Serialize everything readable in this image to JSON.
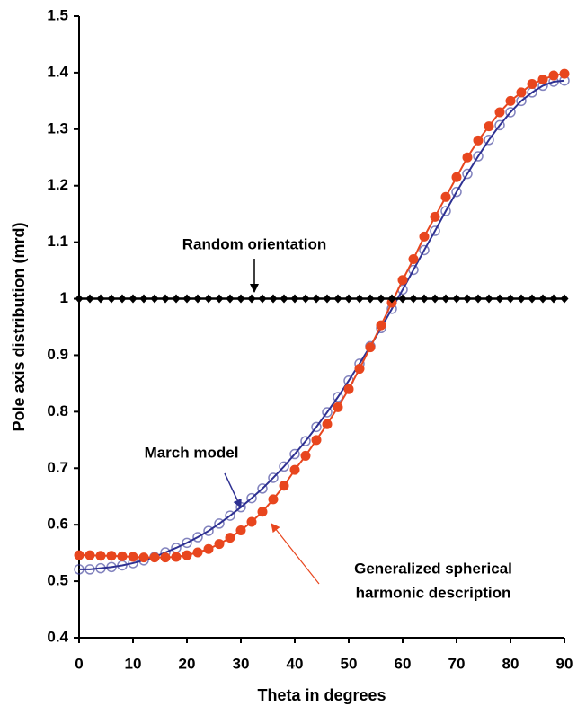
{
  "chart_data": {
    "type": "line",
    "xlabel": "Theta in degrees",
    "ylabel": "Pole axis distribution (mrd)",
    "x": [
      0,
      2,
      4,
      6,
      8,
      10,
      12,
      14,
      16,
      18,
      20,
      22,
      24,
      26,
      28,
      30,
      32,
      34,
      36,
      38,
      40,
      42,
      44,
      46,
      48,
      50,
      52,
      54,
      56,
      58,
      60,
      62,
      64,
      66,
      68,
      70,
      72,
      74,
      76,
      78,
      80,
      82,
      84,
      86,
      88,
      90
    ],
    "series": [
      {
        "name": "March model",
        "color": "#2e3192",
        "marker": "circle-open",
        "values": [
          0.521,
          0.521,
          0.523,
          0.525,
          0.528,
          0.532,
          0.537,
          0.543,
          0.551,
          0.559,
          0.568,
          0.578,
          0.589,
          0.602,
          0.616,
          0.631,
          0.647,
          0.664,
          0.683,
          0.703,
          0.725,
          0.748,
          0.773,
          0.799,
          0.826,
          0.855,
          0.885,
          0.916,
          0.948,
          0.982,
          1.016,
          1.051,
          1.086,
          1.12,
          1.155,
          1.189,
          1.221,
          1.252,
          1.281,
          1.307,
          1.33,
          1.35,
          1.365,
          1.377,
          1.384,
          1.386
        ]
      },
      {
        "name": "Generalized spherical harmonic description",
        "color": "#e8461e",
        "marker": "circle",
        "values": [
          0.546,
          0.546,
          0.545,
          0.545,
          0.544,
          0.543,
          0.542,
          0.542,
          0.542,
          0.543,
          0.546,
          0.551,
          0.557,
          0.566,
          0.577,
          0.59,
          0.605,
          0.623,
          0.645,
          0.669,
          0.697,
          0.722,
          0.75,
          0.778,
          0.808,
          0.84,
          0.876,
          0.914,
          0.953,
          0.993,
          1.033,
          1.07,
          1.11,
          1.145,
          1.18,
          1.215,
          1.25,
          1.28,
          1.305,
          1.33,
          1.35,
          1.365,
          1.38,
          1.388,
          1.395,
          1.398
        ]
      },
      {
        "name": "Random orientation",
        "color": "#000000",
        "marker": "diamond",
        "values": [
          1,
          1,
          1,
          1,
          1,
          1,
          1,
          1,
          1,
          1,
          1,
          1,
          1,
          1,
          1,
          1,
          1,
          1,
          1,
          1,
          1,
          1,
          1,
          1,
          1,
          1,
          1,
          1,
          1,
          1,
          1,
          1,
          1,
          1,
          1,
          1,
          1,
          1,
          1,
          1,
          1,
          1,
          1,
          1,
          1,
          1
        ]
      }
    ],
    "annotations": [
      "Random orientation",
      "March model",
      "Generalized spherical",
      "harmonic description"
    ],
    "xlim": [
      0,
      90
    ],
    "xticks": [
      0,
      10,
      20,
      30,
      40,
      50,
      60,
      70,
      80,
      90
    ],
    "ylim": [
      0.4,
      1.5
    ],
    "yticks": [
      0.4,
      0.5,
      0.6,
      0.7,
      0.8,
      0.9,
      1,
      1.1,
      1.2,
      1.3,
      1.4,
      1.5
    ],
    "grid": false
  }
}
